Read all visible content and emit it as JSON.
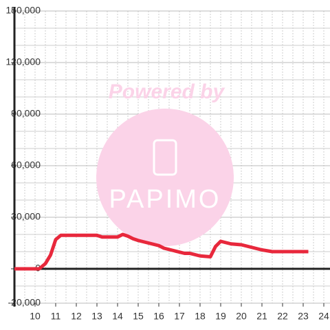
{
  "chart_data": {
    "type": "line",
    "watermark": {
      "line1": "Powered by",
      "logo": "PAPIMO"
    },
    "x": [
      9,
      10.2,
      10.5,
      10.75,
      11,
      11.25,
      12,
      13,
      13.25,
      14,
      14.25,
      14.5,
      14.75,
      15,
      15.5,
      16,
      16.25,
      16.75,
      17.25,
      17.5,
      18,
      18.5,
      18.75,
      19,
      19.5,
      20,
      20.5,
      21,
      21.5,
      22,
      23.25
    ],
    "series": [
      {
        "color": "#e8283c",
        "values": [
          0,
          0,
          3000,
          8000,
          17000,
          19500,
          19500,
          19500,
          18500,
          18500,
          20000,
          19000,
          17500,
          16500,
          15000,
          13500,
          12000,
          10500,
          9000,
          9000,
          7500,
          7000,
          13000,
          16000,
          14500,
          14000,
          12500,
          11000,
          10000,
          10000,
          10000
        ]
      }
    ],
    "xlim": [
      9,
      24.3
    ],
    "xticks": [
      10,
      11,
      12,
      13,
      14,
      15,
      16,
      17,
      18,
      19,
      20,
      21,
      22,
      23,
      24
    ],
    "x_minor_ticks": [
      9.5,
      10,
      10.5,
      11,
      11.5,
      12,
      12.5,
      13,
      13.5,
      14,
      14.5,
      15,
      15.5,
      16,
      16.5,
      17,
      17.5,
      18,
      18.5,
      19,
      19.5,
      20,
      20.5,
      21,
      21.5,
      22,
      22.5,
      23,
      23.5,
      24
    ],
    "ylim": [
      -20000,
      150000
    ],
    "yticks": [
      {
        "value": -20000,
        "label": "-20,000"
      },
      0,
      {
        "value": 30000,
        "label": "30,000"
      },
      {
        "value": 60000,
        "label": "60,000"
      },
      {
        "value": 90000,
        "label": "90,000"
      },
      {
        "value": 120000,
        "label": "120,000"
      },
      {
        "value": 150000,
        "label": "150,000"
      }
    ],
    "y_minor_ticks": [
      -10000,
      10000,
      20000,
      40000,
      50000,
      70000,
      80000,
      100000,
      110000,
      130000,
      140000
    ],
    "grid": true
  }
}
